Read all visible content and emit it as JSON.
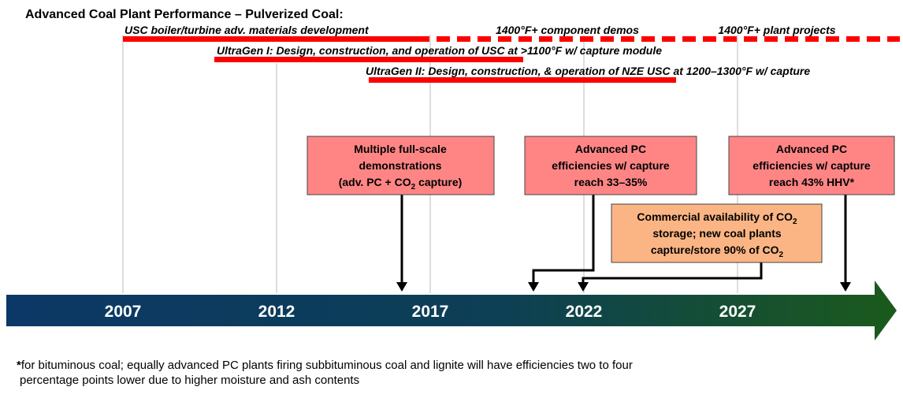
{
  "title": "Advanced Coal Plant Performance – Pulverized Coal:",
  "bars": [
    {
      "label": "USC boiler/turbine adv. materials development"
    },
    {
      "label": "1400°F+ component demos"
    },
    {
      "label": "1400°F+ plant projects"
    },
    {
      "label": "UltraGen I: Design, construction, and operation of USC at >1100°F w/ capture module"
    },
    {
      "label": "UltraGen II: Design, construction, & operation of NZE USC at 1200–1300°F w/ capture"
    }
  ],
  "boxes": [
    {
      "lines": [
        [
          "Multiple full-scale"
        ],
        [
          "demonstrations"
        ],
        [
          "(adv. PC + CO",
          "2",
          " capture)"
        ]
      ]
    },
    {
      "lines": [
        [
          "Advanced PC"
        ],
        [
          "efficiencies w/ capture"
        ],
        [
          "reach 33–35%"
        ]
      ]
    },
    {
      "lines": [
        [
          "Advanced PC"
        ],
        [
          "efficiencies w/ capture"
        ],
        [
          "reach 43% HHV*"
        ]
      ]
    },
    {
      "lines": [
        [
          "Commercial availability of CO",
          "2"
        ],
        [
          "storage; new coal plants"
        ],
        [
          "capture/store 90% of CO",
          "2"
        ]
      ]
    }
  ],
  "years": [
    "2007",
    "2012",
    "2017",
    "2022",
    "2027"
  ],
  "footnote": {
    "mark": "*",
    "lines": [
      "for bituminous coal; equally advanced PC plants firing subbituminous coal and lignite will have efficiencies two to four",
      "percentage points lower due to higher moisture and ash contents"
    ]
  }
}
